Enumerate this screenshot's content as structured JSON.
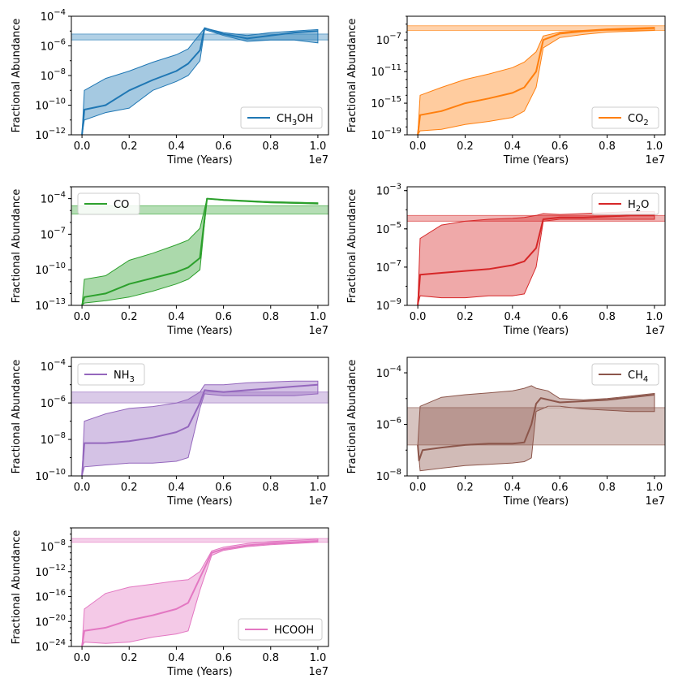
{
  "figure": {
    "x_label": "Time (Years)",
    "y_label": "Fractional Abundance",
    "x_ticks": [
      "0.0",
      "0.2",
      "0.4",
      "0.6",
      "0.8",
      "1.0"
    ],
    "x_offset": "1e7"
  },
  "chart_data": [
    {
      "type": "line",
      "species": "CH3OH",
      "legend": {
        "base": "CH",
        "sub": "3",
        "tail": "OH",
        "loc": "lower right"
      },
      "color": "#1f77b4",
      "ylim_exp": [
        -12,
        -4
      ],
      "y_tick_exps": [
        -12,
        -10,
        -8,
        -6,
        -4
      ],
      "xlim": [
        0,
        10000000.0
      ],
      "obs_band_exp": [
        -5.6,
        -5.2
      ],
      "median_exp": [
        [
          0,
          -12
        ],
        [
          0.01,
          -10.3
        ],
        [
          0.1,
          -10
        ],
        [
          0.2,
          -9
        ],
        [
          0.3,
          -8.3
        ],
        [
          0.4,
          -7.7
        ],
        [
          0.45,
          -7.2
        ],
        [
          0.5,
          -6.3
        ],
        [
          0.52,
          -4.8
        ],
        [
          0.6,
          -5.2
        ],
        [
          0.7,
          -5.5
        ],
        [
          0.8,
          -5.3
        ],
        [
          0.9,
          -5.1
        ],
        [
          1.0,
          -5.0
        ]
      ],
      "upper_exp": [
        [
          0,
          -12
        ],
        [
          0.01,
          -9
        ],
        [
          0.1,
          -8.2
        ],
        [
          0.2,
          -7.7
        ],
        [
          0.3,
          -7.1
        ],
        [
          0.4,
          -6.6
        ],
        [
          0.45,
          -6.2
        ],
        [
          0.5,
          -5.2
        ],
        [
          0.52,
          -4.8
        ],
        [
          0.6,
          -5.1
        ],
        [
          0.7,
          -5.3
        ],
        [
          0.8,
          -5.1
        ],
        [
          0.9,
          -5.0
        ],
        [
          1.0,
          -4.9
        ]
      ],
      "lower_exp": [
        [
          0,
          -12
        ],
        [
          0.01,
          -11
        ],
        [
          0.1,
          -10.5
        ],
        [
          0.2,
          -10.2
        ],
        [
          0.3,
          -9
        ],
        [
          0.4,
          -8.4
        ],
        [
          0.45,
          -8.0
        ],
        [
          0.5,
          -7.0
        ],
        [
          0.52,
          -4.9
        ],
        [
          0.6,
          -5.3
        ],
        [
          0.7,
          -5.7
        ],
        [
          0.8,
          -5.6
        ],
        [
          0.9,
          -5.6
        ],
        [
          1.0,
          -5.8
        ]
      ]
    },
    {
      "type": "line",
      "species": "CO2",
      "legend": {
        "base": "CO",
        "sub": "2",
        "tail": "",
        "loc": "lower right"
      },
      "color": "#ff7f0e",
      "ylim_exp": [
        -19,
        -4
      ],
      "y_tick_exps": [
        -19,
        -15,
        -11,
        -7
      ],
      "xlim": [
        0,
        10000000.0
      ],
      "obs_band_exp": [
        -5.8,
        -5.2
      ],
      "median_exp": [
        [
          0,
          -19
        ],
        [
          0.01,
          -16.5
        ],
        [
          0.1,
          -16
        ],
        [
          0.2,
          -15
        ],
        [
          0.3,
          -14.4
        ],
        [
          0.4,
          -13.7
        ],
        [
          0.45,
          -13
        ],
        [
          0.5,
          -11
        ],
        [
          0.53,
          -7
        ],
        [
          0.6,
          -6.2
        ],
        [
          0.7,
          -5.9
        ],
        [
          0.8,
          -5.7
        ],
        [
          0.9,
          -5.6
        ],
        [
          1.0,
          -5.5
        ]
      ],
      "upper_exp": [
        [
          0,
          -19
        ],
        [
          0.01,
          -14
        ],
        [
          0.1,
          -13
        ],
        [
          0.2,
          -12
        ],
        [
          0.3,
          -11.3
        ],
        [
          0.4,
          -10.5
        ],
        [
          0.45,
          -9.8
        ],
        [
          0.5,
          -8.5
        ],
        [
          0.53,
          -6.5
        ],
        [
          0.6,
          -6.0
        ],
        [
          0.7,
          -5.8
        ],
        [
          0.8,
          -5.6
        ],
        [
          0.9,
          -5.5
        ],
        [
          1.0,
          -5.4
        ]
      ],
      "lower_exp": [
        [
          0,
          -19
        ],
        [
          0.01,
          -18.5
        ],
        [
          0.1,
          -18.3
        ],
        [
          0.2,
          -17.7
        ],
        [
          0.3,
          -17.3
        ],
        [
          0.4,
          -16.8
        ],
        [
          0.45,
          -16
        ],
        [
          0.5,
          -13
        ],
        [
          0.53,
          -8
        ],
        [
          0.6,
          -6.7
        ],
        [
          0.7,
          -6.3
        ],
        [
          0.8,
          -6.0
        ],
        [
          0.9,
          -5.9
        ],
        [
          1.0,
          -5.8
        ]
      ]
    },
    {
      "type": "line",
      "species": "CO",
      "legend": {
        "base": "CO",
        "sub": "",
        "tail": "",
        "loc": "upper left"
      },
      "color": "#2ca02c",
      "ylim_exp": [
        -13,
        -3
      ],
      "y_tick_exps": [
        -13,
        -10,
        -7,
        -4
      ],
      "xlim": [
        0,
        10000000.0
      ],
      "obs_band_exp": [
        -5.3,
        -4.6
      ],
      "median_exp": [
        [
          0,
          -13
        ],
        [
          0.01,
          -12.3
        ],
        [
          0.1,
          -12.0
        ],
        [
          0.2,
          -11.2
        ],
        [
          0.3,
          -10.7
        ],
        [
          0.4,
          -10.2
        ],
        [
          0.45,
          -9.8
        ],
        [
          0.5,
          -9.0
        ],
        [
          0.53,
          -4.0
        ],
        [
          0.6,
          -4.1
        ],
        [
          0.7,
          -4.2
        ],
        [
          0.8,
          -4.3
        ],
        [
          0.9,
          -4.35
        ],
        [
          1.0,
          -4.4
        ]
      ],
      "upper_exp": [
        [
          0,
          -13
        ],
        [
          0.01,
          -10.8
        ],
        [
          0.1,
          -10.5
        ],
        [
          0.2,
          -9.2
        ],
        [
          0.3,
          -8.6
        ],
        [
          0.4,
          -7.9
        ],
        [
          0.45,
          -7.5
        ],
        [
          0.5,
          -6.5
        ],
        [
          0.53,
          -4.0
        ],
        [
          0.6,
          -4.1
        ],
        [
          0.7,
          -4.2
        ],
        [
          0.8,
          -4.25
        ],
        [
          0.9,
          -4.3
        ],
        [
          1.0,
          -4.35
        ]
      ],
      "lower_exp": [
        [
          0,
          -13
        ],
        [
          0.01,
          -12.8
        ],
        [
          0.1,
          -12.6
        ],
        [
          0.2,
          -12.3
        ],
        [
          0.3,
          -11.8
        ],
        [
          0.4,
          -11.2
        ],
        [
          0.45,
          -10.8
        ],
        [
          0.5,
          -10.0
        ],
        [
          0.53,
          -4.0
        ],
        [
          0.6,
          -4.15
        ],
        [
          0.7,
          -4.25
        ],
        [
          0.8,
          -4.35
        ],
        [
          0.9,
          -4.4
        ],
        [
          1.0,
          -4.45
        ]
      ]
    },
    {
      "type": "line",
      "species": "H2O",
      "legend": {
        "base": "H",
        "sub": "2",
        "tail": "O",
        "loc": "upper right"
      },
      "color": "#d62728",
      "ylim_exp": [
        -9,
        -2.8
      ],
      "y_tick_exps": [
        -9,
        -7,
        -5,
        -3
      ],
      "xlim": [
        0,
        10000000.0
      ],
      "obs_band_exp": [
        -4.6,
        -4.3
      ],
      "median_exp": [
        [
          0,
          -9
        ],
        [
          0.01,
          -7.4
        ],
        [
          0.1,
          -7.3
        ],
        [
          0.2,
          -7.2
        ],
        [
          0.3,
          -7.1
        ],
        [
          0.4,
          -6.9
        ],
        [
          0.45,
          -6.7
        ],
        [
          0.5,
          -6.0
        ],
        [
          0.53,
          -4.5
        ],
        [
          0.6,
          -4.4
        ],
        [
          0.7,
          -4.4
        ],
        [
          0.8,
          -4.35
        ],
        [
          0.9,
          -4.3
        ],
        [
          1.0,
          -4.3
        ]
      ],
      "upper_exp": [
        [
          0,
          -9
        ],
        [
          0.01,
          -5.5
        ],
        [
          0.1,
          -4.8
        ],
        [
          0.2,
          -4.6
        ],
        [
          0.3,
          -4.5
        ],
        [
          0.4,
          -4.45
        ],
        [
          0.45,
          -4.4
        ],
        [
          0.5,
          -4.3
        ],
        [
          0.53,
          -4.2
        ],
        [
          0.6,
          -4.25
        ],
        [
          0.7,
          -4.2
        ],
        [
          0.8,
          -4.15
        ],
        [
          0.9,
          -4.1
        ],
        [
          1.0,
          -4.1
        ]
      ],
      "lower_exp": [
        [
          0,
          -9
        ],
        [
          0.01,
          -8.5
        ],
        [
          0.1,
          -8.6
        ],
        [
          0.2,
          -8.6
        ],
        [
          0.3,
          -8.5
        ],
        [
          0.4,
          -8.5
        ],
        [
          0.45,
          -8.4
        ],
        [
          0.5,
          -7.0
        ],
        [
          0.53,
          -4.6
        ],
        [
          0.6,
          -4.5
        ],
        [
          0.7,
          -4.5
        ],
        [
          0.8,
          -4.5
        ],
        [
          0.9,
          -4.5
        ],
        [
          1.0,
          -4.5
        ]
      ]
    },
    {
      "type": "line",
      "species": "NH3",
      "legend": {
        "base": "NH",
        "sub": "3",
        "tail": "",
        "loc": "upper left"
      },
      "color": "#9467bd",
      "ylim_exp": [
        -10,
        -3.5
      ],
      "y_tick_exps": [
        -10,
        -8,
        -6,
        -4
      ],
      "xlim": [
        0,
        10000000.0
      ],
      "obs_band_exp": [
        -6.0,
        -5.4
      ],
      "median_exp": [
        [
          0,
          -10
        ],
        [
          0.01,
          -8.2
        ],
        [
          0.1,
          -8.2
        ],
        [
          0.2,
          -8.1
        ],
        [
          0.3,
          -7.9
        ],
        [
          0.4,
          -7.6
        ],
        [
          0.45,
          -7.3
        ],
        [
          0.5,
          -6.0
        ],
        [
          0.52,
          -5.3
        ],
        [
          0.6,
          -5.4
        ],
        [
          0.7,
          -5.3
        ],
        [
          0.8,
          -5.2
        ],
        [
          0.9,
          -5.1
        ],
        [
          1.0,
          -5.0
        ]
      ],
      "upper_exp": [
        [
          0,
          -10
        ],
        [
          0.01,
          -7.0
        ],
        [
          0.1,
          -6.6
        ],
        [
          0.2,
          -6.3
        ],
        [
          0.3,
          -6.2
        ],
        [
          0.4,
          -6.0
        ],
        [
          0.45,
          -5.8
        ],
        [
          0.5,
          -5.4
        ],
        [
          0.52,
          -5.0
        ],
        [
          0.6,
          -5.0
        ],
        [
          0.7,
          -4.9
        ],
        [
          0.8,
          -4.85
        ],
        [
          0.9,
          -4.8
        ],
        [
          1.0,
          -4.8
        ]
      ],
      "lower_exp": [
        [
          0,
          -10
        ],
        [
          0.01,
          -9.5
        ],
        [
          0.1,
          -9.4
        ],
        [
          0.2,
          -9.3
        ],
        [
          0.3,
          -9.3
        ],
        [
          0.4,
          -9.2
        ],
        [
          0.45,
          -9.0
        ],
        [
          0.5,
          -6.3
        ],
        [
          0.52,
          -5.5
        ],
        [
          0.6,
          -5.6
        ],
        [
          0.7,
          -5.6
        ],
        [
          0.8,
          -5.6
        ],
        [
          0.9,
          -5.6
        ],
        [
          1.0,
          -5.5
        ]
      ]
    },
    {
      "type": "line",
      "species": "CH4",
      "legend": {
        "base": "CH",
        "sub": "4",
        "tail": "",
        "loc": "upper right"
      },
      "color": "#8c564b",
      "ylim_exp": [
        -8,
        -3.4
      ],
      "y_tick_exps": [
        -8,
        -6,
        -4
      ],
      "xlim": [
        0,
        10000000.0
      ],
      "obs_band_exp": [
        -6.8,
        -5.35
      ],
      "median_exp": [
        [
          0,
          -6.8
        ],
        [
          0.005,
          -7.4
        ],
        [
          0.02,
          -7.0
        ],
        [
          0.1,
          -6.9
        ],
        [
          0.2,
          -6.8
        ],
        [
          0.3,
          -6.75
        ],
        [
          0.4,
          -6.75
        ],
        [
          0.45,
          -6.7
        ],
        [
          0.48,
          -6.0
        ],
        [
          0.5,
          -5.2
        ],
        [
          0.52,
          -4.98
        ],
        [
          0.6,
          -5.15
        ],
        [
          0.7,
          -5.1
        ],
        [
          0.8,
          -5.05
        ],
        [
          0.9,
          -4.95
        ],
        [
          1.0,
          -4.85
        ]
      ],
      "upper_exp": [
        [
          0,
          -6.8
        ],
        [
          0.01,
          -5.3
        ],
        [
          0.1,
          -4.95
        ],
        [
          0.2,
          -4.85
        ],
        [
          0.3,
          -4.78
        ],
        [
          0.4,
          -4.7
        ],
        [
          0.45,
          -4.6
        ],
        [
          0.48,
          -4.5
        ],
        [
          0.5,
          -4.6
        ],
        [
          0.55,
          -4.7
        ],
        [
          0.6,
          -5.0
        ],
        [
          0.7,
          -5.05
        ],
        [
          0.8,
          -5.0
        ],
        [
          0.9,
          -4.9
        ],
        [
          1.0,
          -4.8
        ]
      ],
      "lower_exp": [
        [
          0,
          -6.8
        ],
        [
          0.01,
          -7.8
        ],
        [
          0.1,
          -7.7
        ],
        [
          0.2,
          -7.6
        ],
        [
          0.3,
          -7.55
        ],
        [
          0.4,
          -7.5
        ],
        [
          0.45,
          -7.45
        ],
        [
          0.48,
          -7.3
        ],
        [
          0.5,
          -5.5
        ],
        [
          0.55,
          -5.3
        ],
        [
          0.6,
          -5.3
        ],
        [
          0.7,
          -5.4
        ],
        [
          0.8,
          -5.45
        ],
        [
          0.9,
          -5.5
        ],
        [
          1.0,
          -5.5
        ]
      ]
    },
    {
      "type": "line",
      "species": "HCOOH",
      "legend": {
        "base": "HCOOH",
        "sub": "",
        "tail": "",
        "loc": "lower right"
      },
      "color": "#e377c2",
      "ylim_exp": [
        -24,
        -5
      ],
      "y_tick_exps": [
        -24,
        -20,
        -16,
        -12,
        -8
      ],
      "xlim": [
        0,
        10000000.0
      ],
      "obs_band_exp": [
        -7.3,
        -6.7
      ],
      "median_exp": [
        [
          0,
          -24
        ],
        [
          0.01,
          -21.5
        ],
        [
          0.1,
          -21
        ],
        [
          0.2,
          -19.8
        ],
        [
          0.3,
          -19
        ],
        [
          0.4,
          -18
        ],
        [
          0.45,
          -17
        ],
        [
          0.5,
          -13
        ],
        [
          0.55,
          -9
        ],
        [
          0.6,
          -8.4
        ],
        [
          0.7,
          -7.8
        ],
        [
          0.8,
          -7.5
        ],
        [
          0.9,
          -7.3
        ],
        [
          1.0,
          -7.1
        ]
      ],
      "upper_exp": [
        [
          0,
          -24
        ],
        [
          0.01,
          -18
        ],
        [
          0.1,
          -15.5
        ],
        [
          0.2,
          -14.5
        ],
        [
          0.3,
          -14
        ],
        [
          0.4,
          -13.5
        ],
        [
          0.45,
          -13.3
        ],
        [
          0.5,
          -12
        ],
        [
          0.55,
          -8.7
        ],
        [
          0.6,
          -8.1
        ],
        [
          0.7,
          -7.5
        ],
        [
          0.8,
          -7.2
        ],
        [
          0.9,
          -7.0
        ],
        [
          1.0,
          -6.8
        ]
      ],
      "lower_exp": [
        [
          0,
          -24
        ],
        [
          0.01,
          -23.3
        ],
        [
          0.1,
          -23.5
        ],
        [
          0.2,
          -23.3
        ],
        [
          0.3,
          -22.5
        ],
        [
          0.4,
          -22
        ],
        [
          0.45,
          -21.5
        ],
        [
          0.5,
          -15
        ],
        [
          0.55,
          -9.4
        ],
        [
          0.6,
          -8.6
        ],
        [
          0.7,
          -8.0
        ],
        [
          0.8,
          -7.7
        ],
        [
          0.9,
          -7.5
        ],
        [
          1.0,
          -7.3
        ]
      ]
    }
  ]
}
